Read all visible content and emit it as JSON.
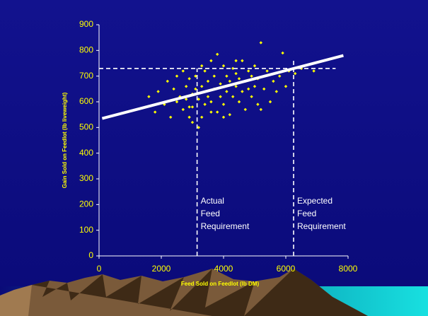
{
  "chart_data": {
    "type": "scatter",
    "x_label": "Feed Sold on Feedlot (lb DM)",
    "y_label": "Gain Sold on Feedlot (lb liveweight)",
    "color": "#ffff00",
    "xlim": [
      0,
      8000
    ],
    "xticks": [
      0,
      2000,
      4000,
      6000,
      8000
    ],
    "ylim": [
      0,
      900
    ],
    "yticks": [
      0,
      100,
      200,
      300,
      400,
      500,
      600,
      700,
      800,
      900
    ],
    "x": [
      1600,
      1800,
      1900,
      2100,
      2200,
      2300,
      2400,
      2500,
      2500,
      2600,
      2700,
      2700,
      2800,
      2800,
      2900,
      2900,
      3000,
      3000,
      3100,
      3100,
      3200,
      3200,
      3300,
      3300,
      3400,
      3400,
      3500,
      3500,
      3600,
      3600,
      3700,
      3700,
      3800,
      3800,
      3900,
      3900,
      4000,
      4000,
      4100,
      4100,
      4200,
      4200,
      4300,
      4300,
      4400,
      4400,
      4500,
      4500,
      4600,
      4600,
      4700,
      4700,
      4800,
      4800,
      4900,
      4900,
      5000,
      5000,
      5100,
      5100,
      5200,
      5300,
      5400,
      5500,
      5600,
      5700,
      5800,
      5900,
      6000,
      6100,
      6300,
      6500,
      6900,
      3000,
      3300,
      3600,
      4000,
      4400,
      5200,
      2900
    ],
    "values": [
      620,
      560,
      640,
      590,
      680,
      540,
      650,
      700,
      600,
      620,
      720,
      570,
      660,
      610,
      690,
      540,
      630,
      580,
      700,
      650,
      500,
      610,
      740,
      660,
      590,
      720,
      680,
      620,
      760,
      600,
      650,
      700,
      785,
      560,
      670,
      620,
      740,
      590,
      700,
      640,
      680,
      550,
      730,
      620,
      660,
      710,
      600,
      690,
      760,
      640,
      570,
      680,
      720,
      650,
      700,
      620,
      660,
      740,
      590,
      690,
      830,
      650,
      720,
      600,
      680,
      640,
      700,
      790,
      660,
      720,
      710,
      730,
      720,
      520,
      540,
      560,
      540,
      760,
      570,
      580
    ],
    "trend_line": {
      "x": [
        100,
        7850
      ],
      "y": [
        535,
        780
      ]
    },
    "horizontal_line": {
      "y": 730,
      "x": [
        0,
        7600
      ]
    },
    "vertical_lines": [
      {
        "x": 3150,
        "y": [
          0,
          730
        ],
        "label": [
          "Actual",
          "Feed",
          "Requirement"
        ]
      },
      {
        "x": 6250,
        "y": [
          0,
          770
        ],
        "label": [
          "Expected",
          "Feed",
          "Requirement"
        ]
      }
    ]
  }
}
